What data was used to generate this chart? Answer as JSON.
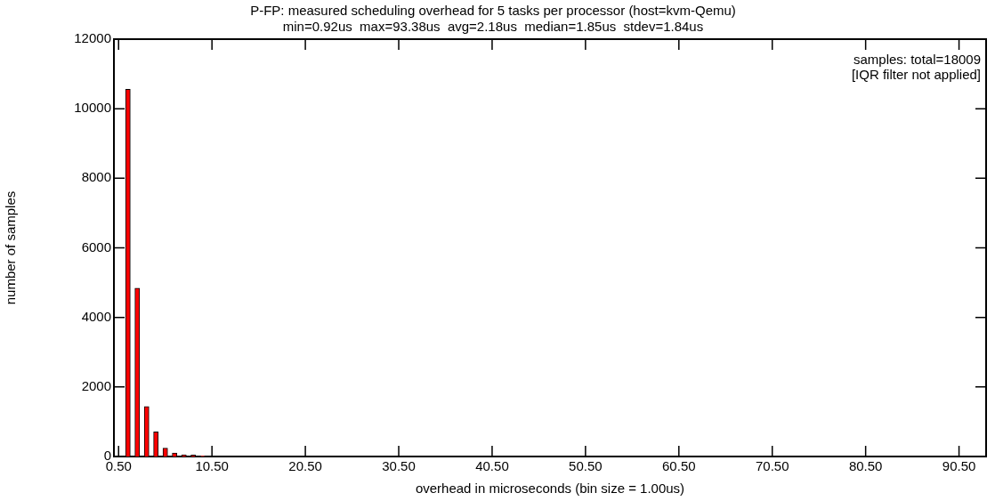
{
  "chart_data": {
    "type": "histogram",
    "title": "P-FP: measured scheduling overhead for 5 tasks per processor (host=kvm-Qemu)",
    "subtitle": "min=0.92us  max=93.38us  avg=2.18us  median=1.85us  stdev=1.84us",
    "xlabel": "overhead in microseconds (bin size = 1.00us)",
    "ylabel": "number of samples",
    "annotations": [
      "samples: total=18009",
      "[IQR filter not applied]"
    ],
    "bins": [
      1,
      2,
      3,
      4,
      5,
      6,
      7,
      8,
      9,
      10,
      11
    ],
    "values": [
      10560,
      4840,
      1440,
      710,
      240,
      100,
      50,
      40,
      20,
      null
    ],
    "color": "#ff0000",
    "xlim": [
      0,
      93.4
    ],
    "xticks": [
      {
        "value": 0.5,
        "label": "0.50"
      },
      {
        "value": 10.5,
        "label": "10.50"
      },
      {
        "value": 20.5,
        "label": "20.50"
      },
      {
        "value": 30.5,
        "label": "30.50"
      },
      {
        "value": 40.5,
        "label": "40.50"
      },
      {
        "value": 50.5,
        "label": "50.50"
      },
      {
        "value": 60.5,
        "label": "60.50"
      },
      {
        "value": 70.5,
        "label": "70.50"
      },
      {
        "value": 80.5,
        "label": "80.50"
      },
      {
        "value": 90.5,
        "label": "90.50"
      }
    ],
    "ylim": [
      0,
      12000
    ],
    "yticks": [
      0,
      2000,
      4000,
      6000,
      8000,
      10000,
      12000
    ],
    "grid": false,
    "legend": false
  }
}
